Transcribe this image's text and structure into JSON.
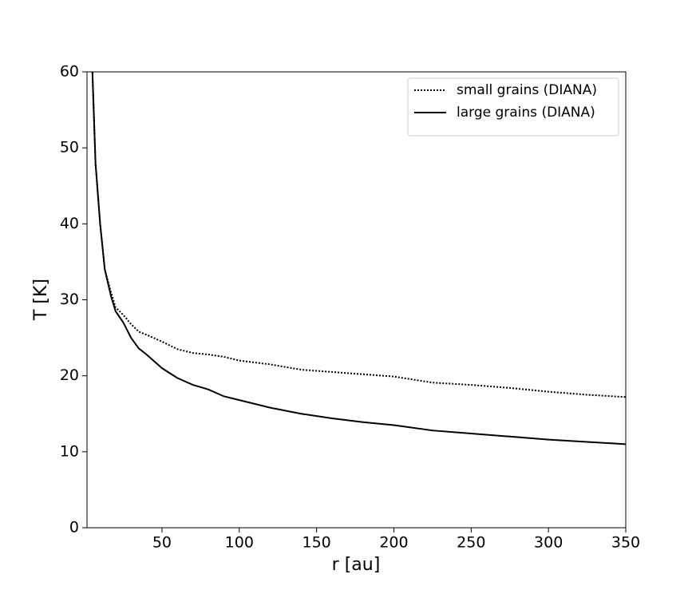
{
  "chart_data": {
    "type": "line",
    "x_label": "r [au]",
    "y_label": "T [K]",
    "x": [
      5,
      7,
      10,
      13,
      17,
      20,
      25,
      30,
      35,
      40,
      50,
      60,
      70,
      80,
      90,
      100,
      120,
      140,
      160,
      180,
      200,
      225,
      250,
      275,
      300,
      325,
      350
    ],
    "series": [
      {
        "name": "small grains (DIANA)",
        "color": "#000000",
        "style": "dotted",
        "values": [
          60,
          48,
          40,
          34,
          31,
          29,
          28,
          26.8,
          25.8,
          25.4,
          24.5,
          23.5,
          23,
          22.8,
          22.5,
          22,
          21.5,
          20.8,
          20.5,
          20.2,
          19.9,
          19.1,
          18.8,
          18.4,
          17.9,
          17.5,
          17.2
        ]
      },
      {
        "name": "large grains (DIANA)",
        "color": "#000000",
        "style": "solid",
        "values": [
          60,
          48,
          40,
          34,
          30.5,
          28.5,
          27,
          25,
          23.6,
          22.8,
          21,
          19.7,
          18.8,
          18.2,
          17.3,
          16.8,
          15.8,
          15,
          14.4,
          13.9,
          13.5,
          12.8,
          12.4,
          12,
          11.6,
          11.3,
          11
        ]
      }
    ],
    "xlim": [
      1.5,
      350
    ],
    "ylim": [
      0,
      60
    ],
    "xticks": [
      50,
      100,
      150,
      200,
      250,
      300,
      350
    ],
    "yticks": [
      0,
      10,
      20,
      30,
      40,
      50,
      60
    ],
    "grid": false,
    "legend": "upper right"
  }
}
